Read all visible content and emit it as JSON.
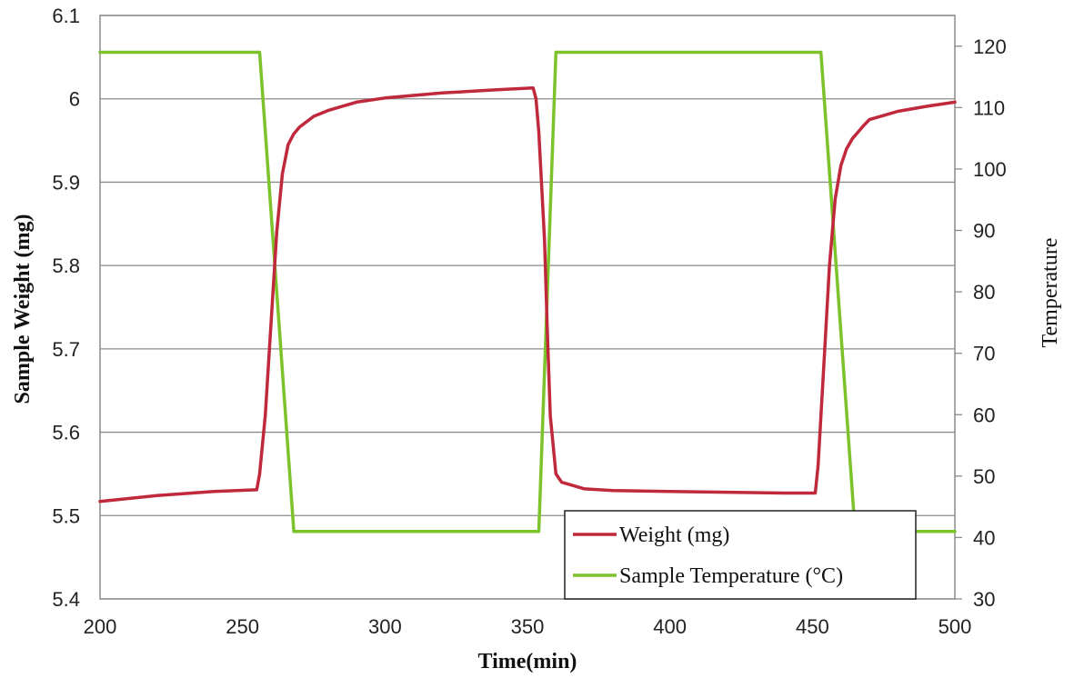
{
  "chart_data": {
    "type": "line",
    "xlabel": "Time(min)",
    "ylabel": "Sample Weight (mg)",
    "y2label": "Temperature",
    "xlim": [
      200,
      500
    ],
    "ylim": [
      5.4,
      6.1
    ],
    "y2lim": [
      30,
      125
    ],
    "x_ticks": [
      "200",
      "250",
      "300",
      "350",
      "400",
      "450",
      "500"
    ],
    "y_ticks": [
      "5.4",
      "5.5",
      "5.6",
      "5.7",
      "5.8",
      "5.9",
      "6",
      "6.1"
    ],
    "y2_ticks": [
      "30",
      "40",
      "50",
      "60",
      "70",
      "80",
      "90",
      "100",
      "110",
      "120"
    ],
    "grid": "horizontal",
    "legend_position": "bottom-right",
    "series": [
      {
        "name": "Weight (mg)",
        "axis": "left",
        "color": "#c0283c",
        "x": [
          200,
          220,
          240,
          255,
          256,
          258,
          260,
          262,
          264,
          266,
          268,
          270,
          275,
          280,
          290,
          300,
          320,
          340,
          352,
          353,
          354,
          356,
          357,
          358,
          360,
          362,
          370,
          380,
          400,
          420,
          440,
          451,
          452,
          454,
          456,
          458,
          460,
          462,
          464,
          466,
          468,
          470,
          480,
          490,
          500
        ],
        "values": [
          5.517,
          5.524,
          5.529,
          5.531,
          5.55,
          5.62,
          5.73,
          5.84,
          5.91,
          5.945,
          5.958,
          5.966,
          5.979,
          5.986,
          5.996,
          6.001,
          6.007,
          6.011,
          6.013,
          6.0,
          5.96,
          5.83,
          5.72,
          5.62,
          5.55,
          5.54,
          5.532,
          5.53,
          5.529,
          5.528,
          5.527,
          5.527,
          5.56,
          5.68,
          5.8,
          5.88,
          5.92,
          5.94,
          5.952,
          5.96,
          5.968,
          5.975,
          5.985,
          5.991,
          5.996
        ]
      },
      {
        "name": "Sample Temperature (°C)",
        "axis": "right",
        "color": "#7cc22a",
        "x": [
          200,
          255,
          256,
          268,
          280,
          300,
          320,
          340,
          353,
          354,
          360,
          380,
          400,
          420,
          440,
          452,
          453,
          465,
          480,
          500
        ],
        "values": [
          119,
          119,
          119,
          41,
          41,
          41,
          41,
          41,
          41,
          41,
          119,
          119,
          119,
          119,
          119,
          119,
          119,
          41,
          41,
          41
        ]
      }
    ]
  }
}
